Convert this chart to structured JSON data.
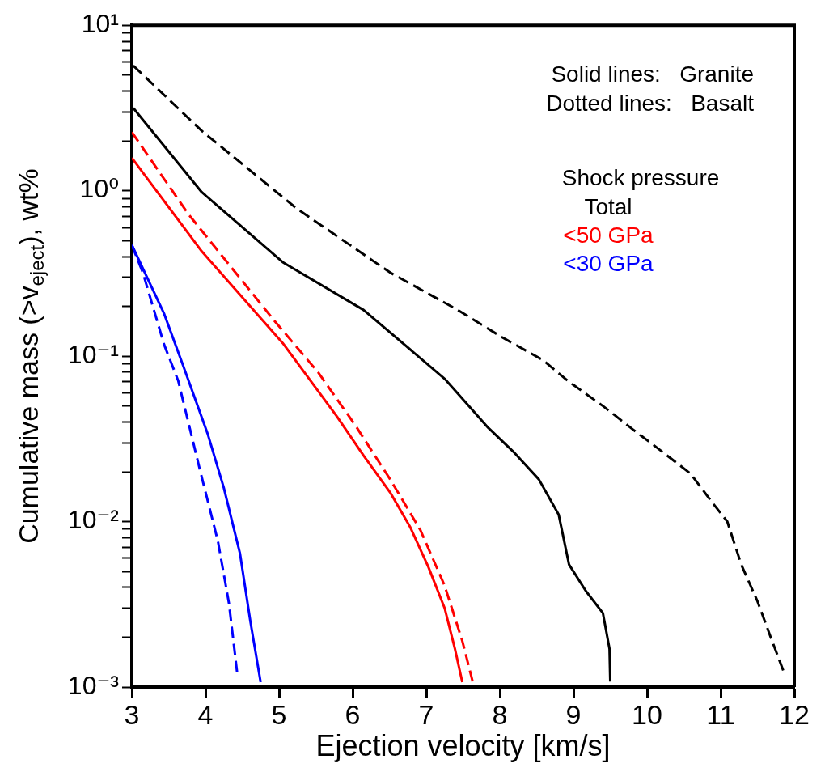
{
  "chart_data": {
    "type": "line",
    "xlabel": "Ejection velocity [km/s]",
    "ylabel": "Cumulative mass (>v$_{eject}$), wt%",
    "log": "y",
    "grid": false,
    "legend": "top right",
    "legend_title": "Shock pressure",
    "xlim": [
      3,
      12
    ],
    "xticks": [
      3,
      4,
      5,
      6,
      7,
      8,
      9,
      10,
      11,
      12
    ],
    "ylim": [
      0.001,
      10
    ],
    "yticks": [
      {
        "value": 0.001,
        "label": "10⁻³"
      },
      {
        "value": 0.002,
        "label": null
      },
      {
        "value": 0.003,
        "label": null
      },
      {
        "value": 0.004,
        "label": null
      },
      {
        "value": 0.005,
        "label": null
      },
      {
        "value": 0.006,
        "label": null
      },
      {
        "value": 0.007,
        "label": null
      },
      {
        "value": 0.008,
        "label": null
      },
      {
        "value": 0.009,
        "label": null
      },
      {
        "value": 0.01,
        "label": "10⁻²"
      },
      {
        "value": 0.02,
        "label": null
      },
      {
        "value": 0.03,
        "label": null
      },
      {
        "value": 0.04,
        "label": null
      },
      {
        "value": 0.05,
        "label": null
      },
      {
        "value": 0.06,
        "label": null
      },
      {
        "value": 0.07,
        "label": null
      },
      {
        "value": 0.08,
        "label": null
      },
      {
        "value": 0.09,
        "label": null
      },
      {
        "value": 0.1,
        "label": "10⁻¹"
      },
      {
        "value": 0.2,
        "label": null
      },
      {
        "value": 0.3,
        "label": null
      },
      {
        "value": 0.4,
        "label": null
      },
      {
        "value": 0.5,
        "label": null
      },
      {
        "value": 0.6,
        "label": null
      },
      {
        "value": 0.7,
        "label": null
      },
      {
        "value": 0.8,
        "label": null
      },
      {
        "value": 0.9,
        "label": null
      },
      {
        "value": 1,
        "label": "10⁰"
      },
      {
        "value": 2,
        "label": null
      },
      {
        "value": 3,
        "label": null
      },
      {
        "value": 4,
        "label": null
      },
      {
        "value": 5,
        "label": null
      },
      {
        "value": 6,
        "label": null
      },
      {
        "value": 7,
        "label": null
      },
      {
        "value": 8,
        "label": null
      },
      {
        "value": 9,
        "label": null
      },
      {
        "value": 10,
        "label": "10¹"
      }
    ],
    "annotations": [
      "Solid lines:   Granite",
      "Dotted lines:   Basalt"
    ],
    "series": [
      {
        "name": "Total",
        "color": "#000000",
        "line_style": "solid",
        "x": [
          3.02,
          3.95,
          5.05,
          6.15,
          7.25,
          7.84,
          8.2,
          8.53,
          8.8,
          8.94,
          9.17,
          9.4,
          9.49,
          9.5
        ],
        "values": [
          3.16,
          0.98,
          0.37,
          0.19,
          0.073,
          0.037,
          0.026,
          0.018,
          0.011,
          0.0055,
          0.0038,
          0.0028,
          0.0017,
          0.00108
        ]
      },
      {
        "color": "#000000",
        "line_style": "dashed",
        "x": [
          3.02,
          3.95,
          5.24,
          6.51,
          7.43,
          8.03,
          8.58,
          8.94,
          9.4,
          9.81,
          10.18,
          10.59,
          10.9,
          11.09,
          11.28,
          11.5,
          11.68,
          11.85
        ],
        "values": [
          5.7,
          2.3,
          0.78,
          0.32,
          0.19,
          0.13,
          0.095,
          0.07,
          0.05,
          0.036,
          0.027,
          0.0195,
          0.0128,
          0.01,
          0.0055,
          0.0033,
          0.002,
          0.00126
        ]
      },
      {
        "name": "<50 GPa",
        "color": "#ff0000",
        "line_style": "solid",
        "x": [
          3.0,
          3.95,
          5.05,
          5.79,
          6.15,
          6.51,
          6.78,
          7.03,
          7.25,
          7.39,
          7.49
        ],
        "values": [
          1.58,
          0.43,
          0.12,
          0.043,
          0.025,
          0.015,
          0.0093,
          0.0053,
          0.003,
          0.0017,
          0.00107
        ]
      },
      {
        "color": "#ff0000",
        "line_style": "dashed",
        "x": [
          3.0,
          3.77,
          4.94,
          5.53,
          6.04,
          6.51,
          6.92,
          7.25,
          7.49,
          7.63
        ],
        "values": [
          2.26,
          0.72,
          0.163,
          0.08,
          0.038,
          0.018,
          0.0089,
          0.0041,
          0.0019,
          0.00108
        ]
      },
      {
        "name": "<30 GPa",
        "color": "#0000ff",
        "line_style": "solid",
        "x": [
          3.0,
          3.44,
          3.7,
          4.03,
          4.25,
          4.47,
          4.61,
          4.75
        ],
        "values": [
          0.47,
          0.18,
          0.087,
          0.034,
          0.016,
          0.0064,
          0.0025,
          0.00107
        ]
      },
      {
        "color": "#0000ff",
        "line_style": "dashed",
        "x": [
          3.0,
          3.15,
          3.44,
          3.63,
          3.92,
          4.17,
          4.32,
          4.43
        ],
        "values": [
          0.47,
          0.32,
          0.117,
          0.071,
          0.021,
          0.0076,
          0.0032,
          0.00123
        ]
      }
    ]
  }
}
